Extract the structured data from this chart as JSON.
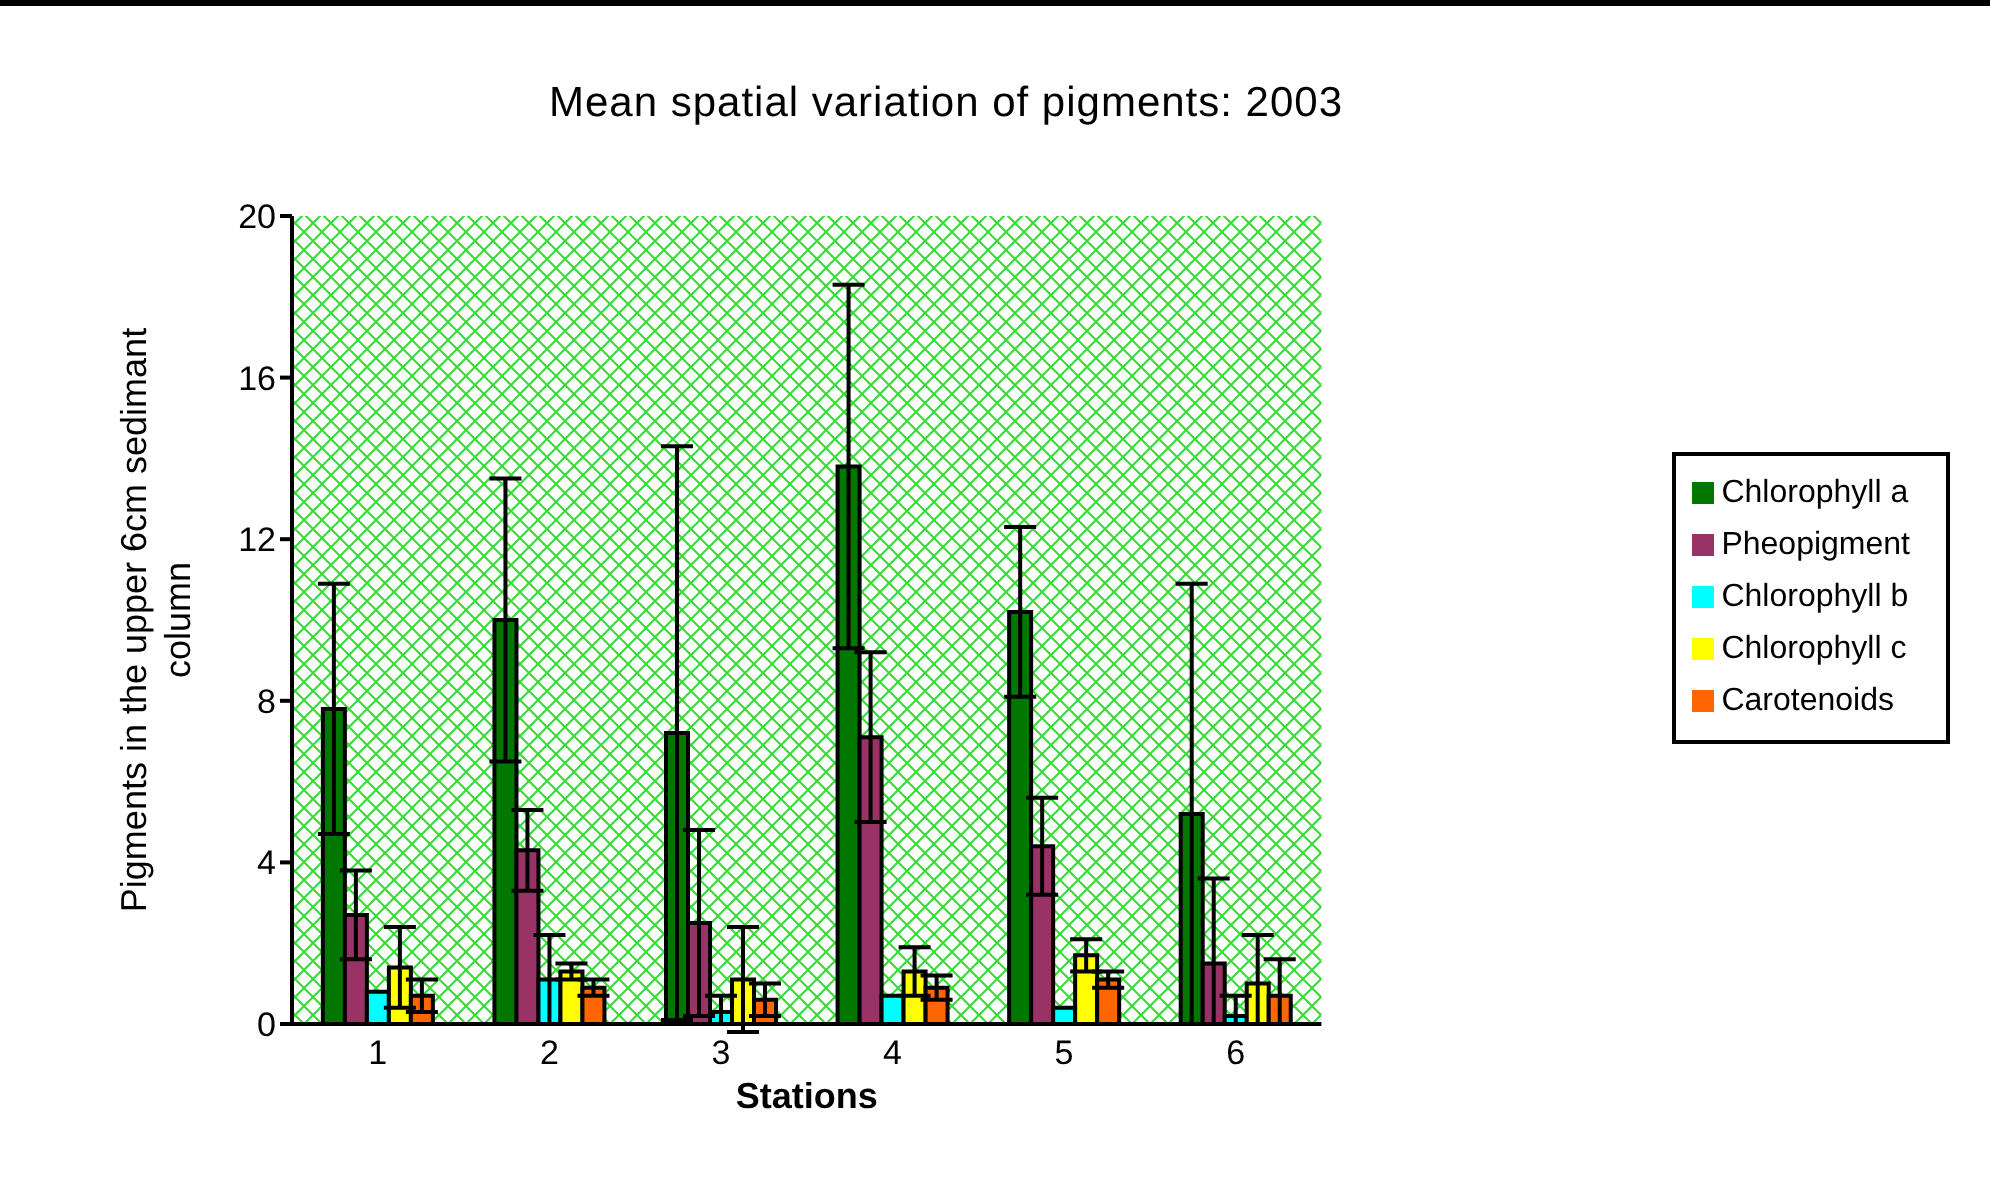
{
  "chart_data": {
    "type": "bar",
    "title": "Mean spatial variation of pigments: 2003",
    "xlabel": "Stations",
    "ylabel": "Pigments in the upper 6cm sedimant column",
    "categories": [
      "1",
      "2",
      "3",
      "4",
      "5",
      "6"
    ],
    "series": [
      {
        "name": "Chlorophyll a",
        "color": "#007800",
        "values": [
          7.8,
          10.0,
          7.2,
          13.8,
          10.2,
          5.2
        ],
        "errors": [
          3.1,
          3.5,
          7.1,
          4.5,
          2.1,
          [
            0,
            10.9
          ]
        ]
      },
      {
        "name": "Pheopigment",
        "color": "#993366",
        "values": [
          2.7,
          4.3,
          2.5,
          7.1,
          4.4,
          1.5
        ],
        "errors": [
          1.1,
          1.0,
          2.3,
          2.1,
          1.2,
          [
            0,
            3.6
          ]
        ]
      },
      {
        "name": "Chlorophyll b",
        "color": "#00ffff",
        "values": [
          0.8,
          1.1,
          0.3,
          0.7,
          0.4,
          0.2
        ],
        "errors": [
          null,
          1.1,
          [
            0,
            0.7
          ],
          null,
          null,
          [
            0,
            0.7
          ]
        ]
      },
      {
        "name": "Chlorophyll c",
        "color": "#ffff00",
        "values": [
          1.4,
          1.3,
          1.1,
          1.3,
          1.7,
          1.0
        ],
        "errors": [
          1.0,
          0.2,
          1.3,
          0.6,
          0.4,
          [
            0,
            2.2
          ]
        ]
      },
      {
        "name": "Carotenoids",
        "color": "#ff6600",
        "values": [
          0.7,
          0.9,
          0.6,
          0.9,
          1.1,
          0.7
        ],
        "errors": [
          0.4,
          0.2,
          0.4,
          0.3,
          0.2,
          [
            0,
            1.6
          ]
        ]
      }
    ],
    "ylim": [
      0,
      20
    ],
    "yticks": [
      0,
      4,
      8,
      12,
      16,
      20
    ],
    "grid": false,
    "legend": "right"
  }
}
